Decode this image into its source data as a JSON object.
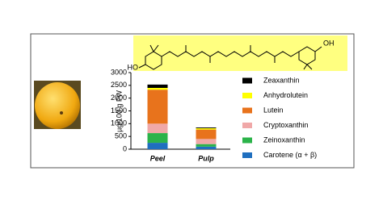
{
  "chart_data": {
    "type": "bar",
    "stacked": true,
    "y_label": "µg/100 g FW",
    "categories": [
      "Peel",
      "Pulp"
    ],
    "series": [
      {
        "name": "Carotene (α + β)",
        "color": "#1f6fbf",
        "values": [
          250,
          100
        ]
      },
      {
        "name": "Zeinoxanthin",
        "color": "#2bb34a",
        "values": [
          380,
          100
        ]
      },
      {
        "name": "Cryptoxanthin",
        "color": "#f0a8a8",
        "values": [
          370,
          200
        ]
      },
      {
        "name": "Lutein",
        "color": "#e8731c",
        "values": [
          1330,
          370
        ]
      },
      {
        "name": "Anhydrolutein",
        "color": "#ffff00",
        "values": [
          70,
          50
        ]
      },
      {
        "name": "Zeaxanthin",
        "color": "#000000",
        "values": [
          130,
          30
        ]
      }
    ],
    "ylim": [
      0,
      3000
    ],
    "yticks": [
      0,
      500,
      1000,
      1500,
      2000,
      2500,
      3000
    ]
  },
  "structure": {
    "left_group": "HO",
    "right_group": "OH"
  }
}
